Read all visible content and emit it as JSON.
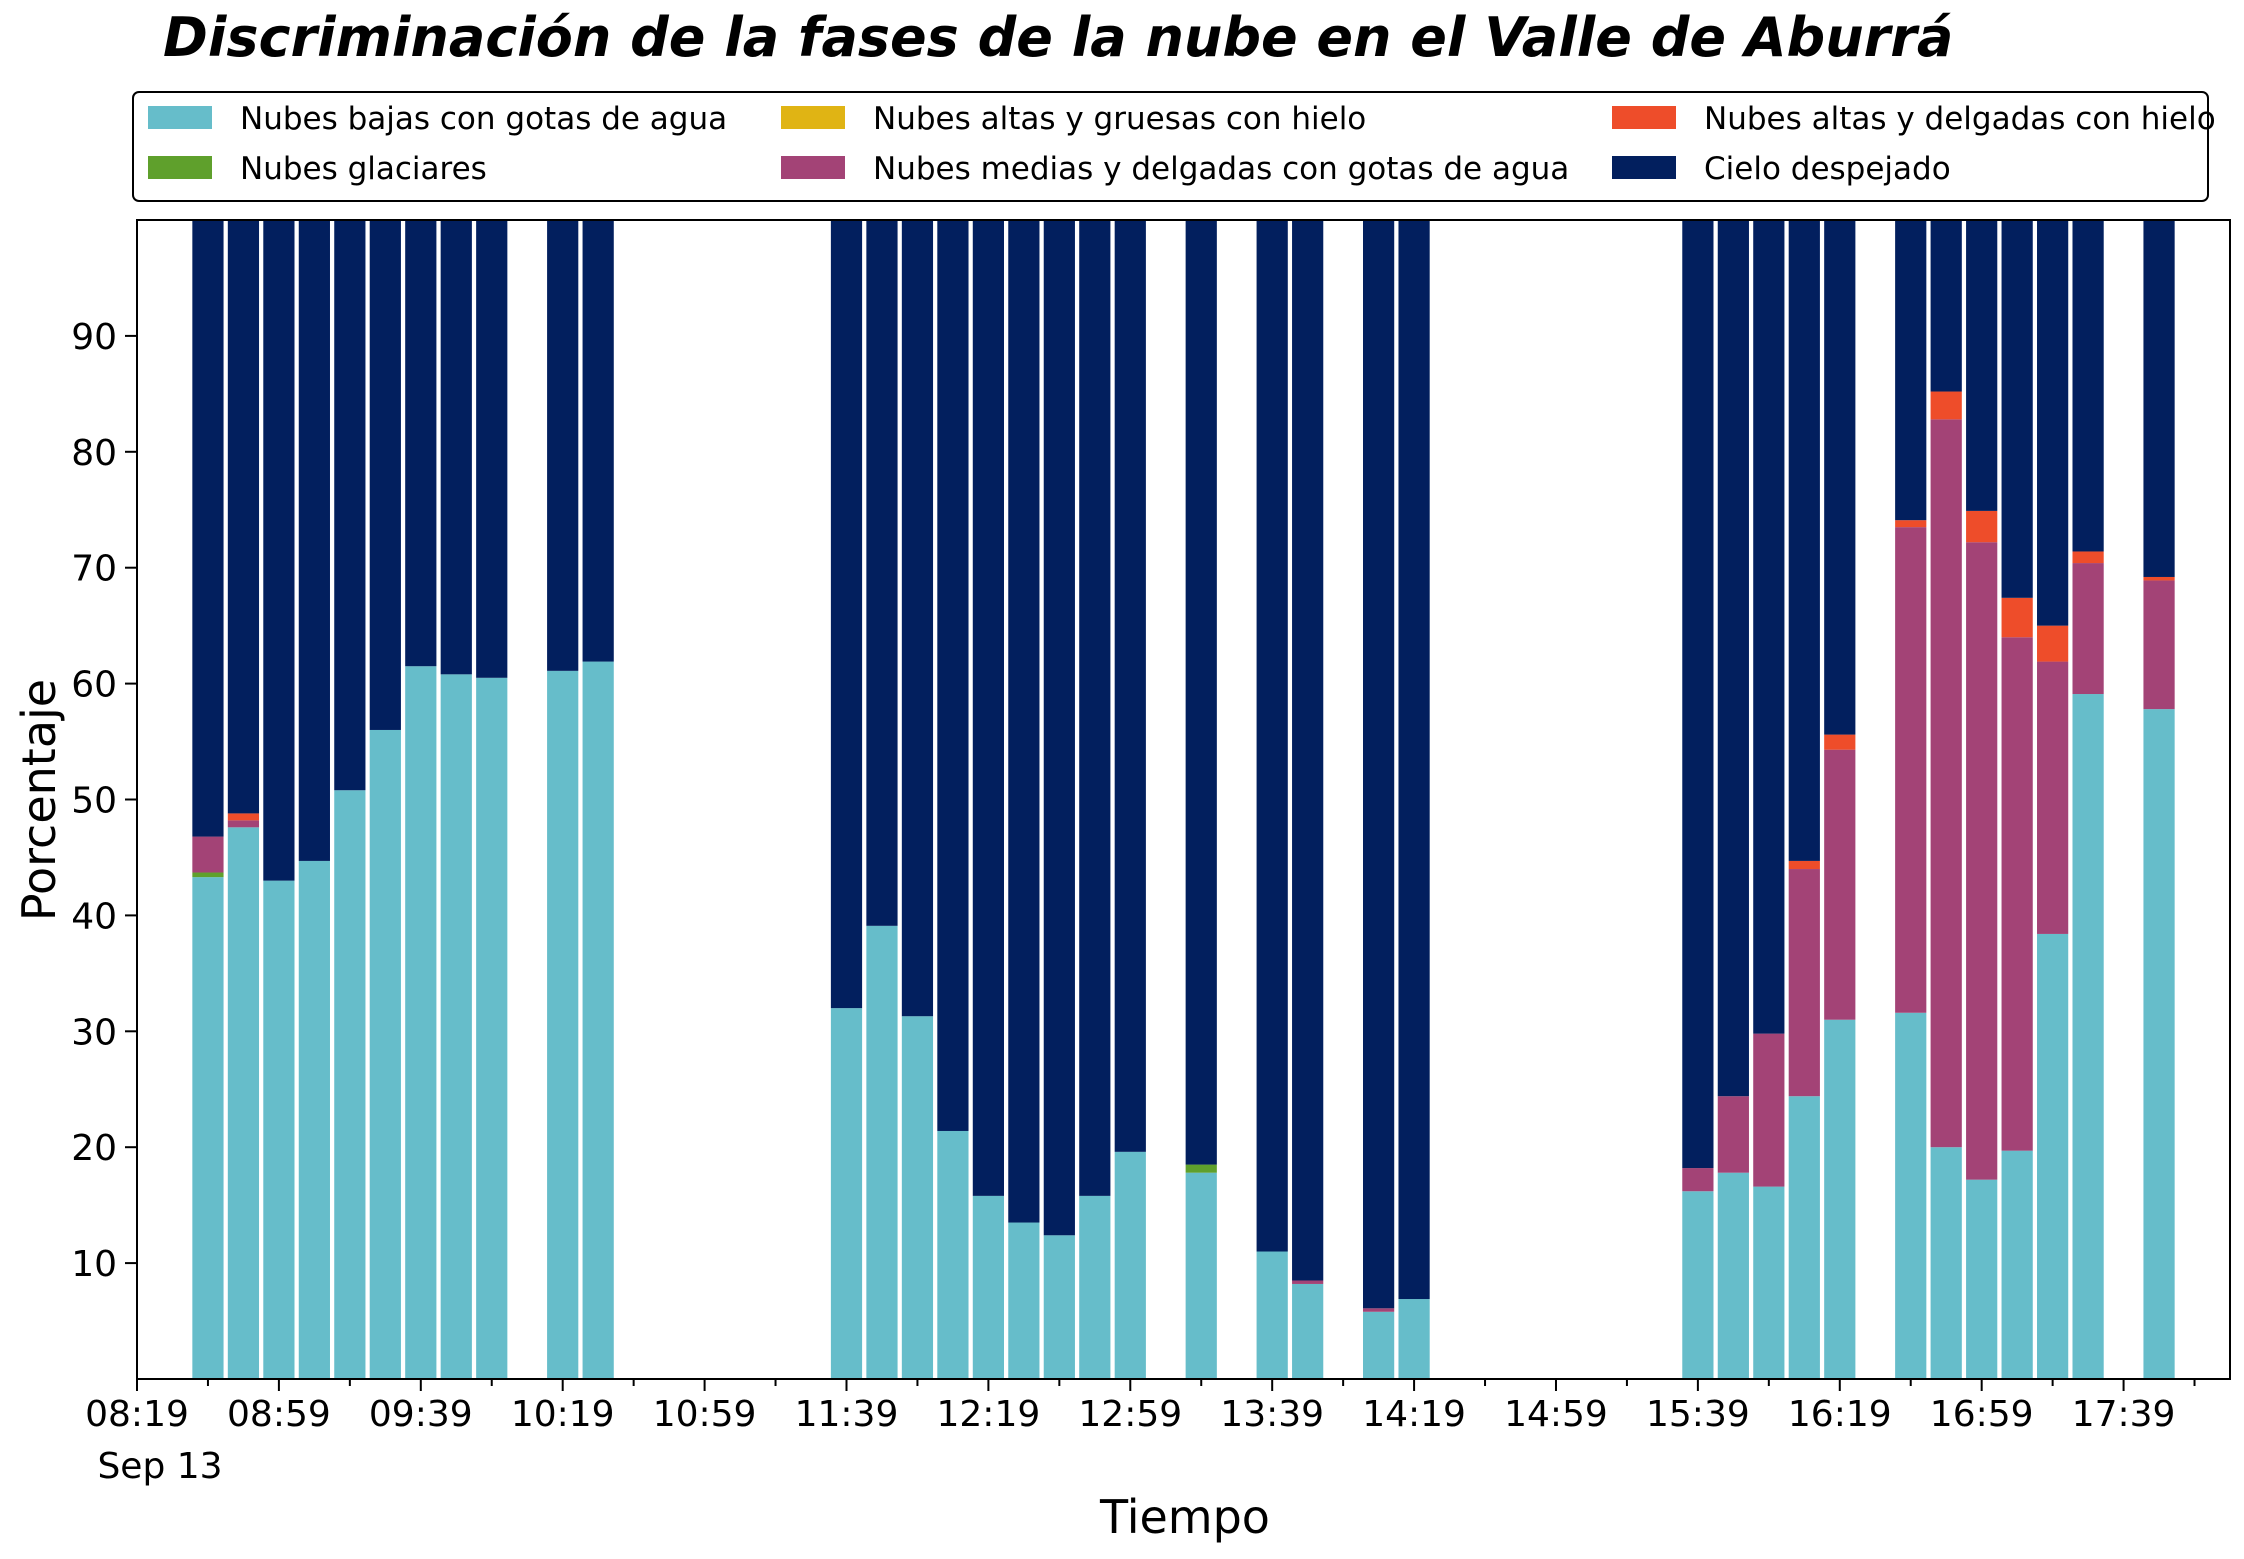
{
  "chart_data": {
    "type": "bar",
    "stacked": true,
    "title": "Discriminación de la fases de la nube en el Valle de Aburrá",
    "xlabel": "Tiempo",
    "ylabel": "Porcentaje",
    "ylim": [
      0,
      100
    ],
    "yticks": [
      10,
      20,
      30,
      40,
      50,
      60,
      70,
      80,
      90
    ],
    "xlim": [
      "08:19",
      "18:09"
    ],
    "xticks": [
      "08:19",
      "08:59",
      "09:39",
      "10:19",
      "10:59",
      "11:39",
      "12:19",
      "12:59",
      "13:39",
      "14:19",
      "14:59",
      "15:39",
      "16:19",
      "16:59",
      "17:39"
    ],
    "x_date_label": "Sep 13",
    "grid": false,
    "legend_position": "top",
    "times": [
      "08:39",
      "08:49",
      "08:59",
      "09:09",
      "09:19",
      "09:29",
      "09:39",
      "09:49",
      "09:59",
      "10:19",
      "10:29",
      "11:39",
      "11:49",
      "11:59",
      "12:09",
      "12:19",
      "12:29",
      "12:39",
      "12:49",
      "12:59",
      "13:19",
      "13:39",
      "13:49",
      "14:09",
      "14:19",
      "15:39",
      "15:49",
      "15:59",
      "16:09",
      "16:19",
      "16:39",
      "16:49",
      "16:59",
      "17:09",
      "17:19",
      "17:29",
      "17:49"
    ],
    "series": [
      {
        "name": "Nubes bajas con gotas de agua",
        "color": "#66bdca",
        "values": [
          43.3,
          47.6,
          43.0,
          44.7,
          50.8,
          56.0,
          61.5,
          60.8,
          60.5,
          61.1,
          61.9,
          32.0,
          39.1,
          31.3,
          21.4,
          15.8,
          13.5,
          12.4,
          15.8,
          19.6,
          17.8,
          11.0,
          8.2,
          5.8,
          6.9,
          16.2,
          17.8,
          16.6,
          24.4,
          31.0,
          31.6,
          20.0,
          17.2,
          19.7,
          38.4,
          59.1,
          57.8
        ]
      },
      {
        "name": "Nubes glaciares",
        "color": "#5fa02c",
        "values": [
          0.4,
          0,
          0,
          0,
          0,
          0,
          0,
          0,
          0,
          0,
          0,
          0,
          0,
          0,
          0,
          0,
          0,
          0,
          0,
          0,
          0.7,
          0,
          0,
          0,
          0,
          0,
          0,
          0,
          0,
          0,
          0,
          0,
          0,
          0,
          0,
          0,
          0
        ]
      },
      {
        "name": "Nubes medias y delgadas con gotas de agua",
        "color": "#a34376",
        "values": [
          3.1,
          0.6,
          0,
          0,
          0,
          0,
          0,
          0,
          0,
          0,
          0,
          0,
          0,
          0,
          0,
          0,
          0,
          0,
          0,
          0,
          0,
          0,
          0.3,
          0.3,
          0,
          2.0,
          6.6,
          13.2,
          19.6,
          23.3,
          41.9,
          62.8,
          55.0,
          44.3,
          23.5,
          11.3,
          11.1
        ]
      },
      {
        "name": "Nubes altas y gruesas con hielo",
        "color": "#e0b414",
        "values": [
          0,
          0,
          0,
          0,
          0,
          0,
          0,
          0,
          0,
          0,
          0,
          0,
          0,
          0,
          0,
          0,
          0,
          0,
          0,
          0,
          0,
          0,
          0,
          0,
          0,
          0,
          0,
          0,
          0,
          0,
          0,
          0,
          0,
          0,
          0,
          0,
          0
        ]
      },
      {
        "name": "Nubes altas y delgadas con hielo",
        "color": "#ee4d2a",
        "values": [
          0,
          0.6,
          0,
          0,
          0,
          0,
          0,
          0,
          0,
          0,
          0,
          0,
          0,
          0,
          0,
          0,
          0,
          0,
          0,
          0,
          0,
          0,
          0,
          0,
          0,
          0,
          0,
          0,
          0.7,
          1.3,
          0.6,
          2.4,
          2.7,
          3.4,
          3.1,
          1.0,
          0.3
        ]
      },
      {
        "name": "Cielo despejado",
        "color": "#021f5e",
        "values": [
          53.2,
          51.2,
          57.0,
          55.3,
          49.2,
          44.0,
          38.5,
          39.2,
          39.5,
          38.9,
          38.1,
          68.0,
          60.9,
          68.7,
          78.6,
          84.2,
          86.5,
          87.6,
          84.2,
          80.4,
          81.5,
          89.0,
          91.5,
          93.9,
          93.1,
          81.8,
          75.6,
          70.2,
          55.3,
          44.4,
          25.9,
          14.8,
          25.1,
          32.6,
          35.0,
          28.6,
          30.8
        ]
      }
    ],
    "legend_order": [
      "Nubes bajas con gotas de agua",
      "Nubes altas y gruesas con hielo",
      "Nubes altas y delgadas con hielo",
      "Nubes glaciares",
      "Nubes medias y delgadas con gotas de agua",
      "Cielo despejado"
    ]
  }
}
